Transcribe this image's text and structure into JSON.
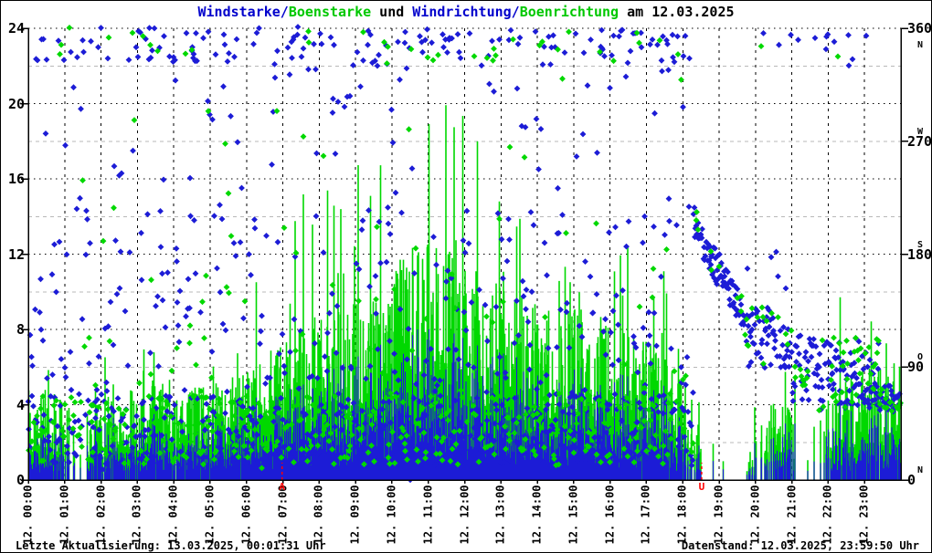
{
  "title": {
    "parts": [
      {
        "text": "Windstarke/",
        "color": "blue"
      },
      {
        "text": "Boenstarke",
        "color": "green"
      },
      {
        "text": " und ",
        "color": "black"
      },
      {
        "text": "Windrichtung/",
        "color": "blue"
      },
      {
        "text": "Boenrichtung",
        "color": "green"
      },
      {
        "text": " am 12.03.2025",
        "color": "black"
      }
    ],
    "full": "Windstarke/Boenstarke und Windrichtung/Boenrichtung am 12.03.2025"
  },
  "footer": {
    "left": "Letzte Aktualisierung: 13.03.2025, 00:01:31 Uhr",
    "right": "Datenstand: 12.03.2025, 23:59:50 Uhr"
  },
  "colors": {
    "background": "#ffffff",
    "text": "#000000",
    "title_blue": "#0000cc",
    "title_green": "#00c800",
    "wind_blue": "#1c1cd6",
    "gust_green": "#00d800",
    "red": "#ff0000",
    "grid_major": "#000000",
    "grid_minor": "#b8b8b8",
    "axis": "#000000"
  },
  "chart_data": {
    "type": "mixed-impulse-scatter",
    "title": "Windstarke/Boenstarke und Windrichtung/Boenrichtung am 12.03.2025",
    "date": "12.03.2025",
    "grid": "on",
    "seed": 987241,
    "samples_per_hour": 60,
    "series": [
      {
        "name": "Windstarke",
        "style": "impulse",
        "axis": "left",
        "color": "#1c1cd6"
      },
      {
        "name": "Boenstarke",
        "style": "impulse",
        "axis": "left",
        "color": "#00d800"
      },
      {
        "name": "Windrichtung",
        "style": "points",
        "axis": "right",
        "color": "#1c1cd6"
      },
      {
        "name": "Boenrichtung",
        "style": "points",
        "axis": "right",
        "color": "#00d800"
      }
    ],
    "y_left": {
      "range": [
        0,
        24
      ],
      "tick_values": [
        0,
        4,
        8,
        12,
        16,
        20,
        24
      ],
      "tick_labels": [
        "0",
        "4",
        "8",
        "12",
        "16",
        "20",
        "24"
      ],
      "minor_values": [
        2,
        6,
        10,
        14,
        18,
        22
      ]
    },
    "y_right": {
      "range": [
        0,
        360
      ],
      "tick_values": [
        0,
        90,
        180,
        270,
        360
      ],
      "tick_labels": [
        "0",
        "90",
        "180",
        "270",
        "360"
      ],
      "compass": [
        {
          "label": "N",
          "deg": 0
        },
        {
          "label": "O",
          "deg": 90
        },
        {
          "label": "S",
          "deg": 180
        },
        {
          "label": "W",
          "deg": 270
        },
        {
          "label": "N",
          "deg": 360
        }
      ]
    },
    "x_axis": {
      "range_hours": [
        0,
        24
      ],
      "grid_every_hours": 1,
      "tick_labels": [
        "12. 00:00",
        "12. 01:00",
        "12. 02:00",
        "12. 03:00",
        "12. 04:00",
        "12. 05:00",
        "12. 06:00",
        "12. 07:00",
        "12. 08:00",
        "12. 09:00",
        "12. 10:00",
        "12. 11:00",
        "12. 12:00",
        "12. 13:00",
        "12. 14:00",
        "12. 15:00",
        "12. 16:00",
        "12. 17:00",
        "12. 18:00",
        "12. 19:00",
        "12. 20:00",
        "12. 21:00",
        "12. 22:00",
        "12. 23:00"
      ]
    },
    "sun_markers": [
      {
        "label": "A",
        "hour": 6.98
      },
      {
        "label": "U",
        "hour": 18.52
      }
    ],
    "hourly_envelope": {
      "hours": [
        0,
        1,
        2,
        3,
        4,
        5,
        6,
        7,
        8,
        9,
        10,
        11,
        12,
        13,
        14,
        15,
        16,
        17,
        18,
        19,
        20,
        21,
        22,
        23
      ],
      "wind_typ": [
        1.3,
        0.9,
        1.4,
        1.5,
        1.4,
        1.8,
        2.2,
        2.6,
        2.8,
        3.2,
        3.8,
        3.8,
        3.4,
        3.0,
        2.8,
        2.8,
        2.4,
        2.0,
        1.0,
        0.3,
        1.0,
        0.9,
        1.4,
        1.5
      ],
      "wind_max": [
        3.0,
        2.5,
        3.5,
        3.5,
        3.5,
        4.0,
        4.5,
        5.0,
        6.0,
        7.0,
        8.0,
        8.0,
        7.0,
        6.5,
        6.0,
        6.0,
        5.5,
        5.0,
        3.0,
        1.0,
        3.0,
        3.0,
        4.5,
        4.0
      ],
      "gust_typ": [
        3.5,
        2.5,
        3.5,
        4.0,
        3.5,
        4.0,
        5.0,
        6.0,
        6.5,
        7.0,
        9.0,
        9.0,
        8.0,
        7.0,
        6.5,
        6.5,
        5.5,
        5.0,
        3.0,
        0.5,
        3.0,
        2.5,
        4.0,
        4.5
      ],
      "gust_max": [
        7.5,
        5.0,
        7.5,
        8.0,
        7.0,
        8.0,
        11.5,
        16.0,
        16.0,
        18.0,
        23.5,
        21.0,
        18.0,
        15.5,
        13.0,
        14.0,
        12.5,
        12.0,
        7.5,
        1.5,
        7.0,
        5.5,
        12.8,
        8.0
      ],
      "activity": [
        0.9,
        0.6,
        0.85,
        0.9,
        0.9,
        0.95,
        1,
        1,
        1,
        1,
        1,
        1,
        1,
        1,
        1,
        1,
        1,
        0.95,
        0.5,
        0.08,
        0.8,
        0.55,
        0.9,
        0.95
      ]
    },
    "quiet_ranges_hours": [
      [
        1.12,
        1.6
      ],
      [
        18.55,
        19.75
      ],
      [
        21.1,
        21.85
      ]
    ],
    "direction_segments": [
      {
        "from": 0,
        "to": 18.3,
        "blue_p": 0.85,
        "green_p": 0.4,
        "bands": [
          {
            "min": 12,
            "max": 68,
            "w": 0.45
          },
          {
            "min": 68,
            "max": 145,
            "w": 0.18
          },
          {
            "min": 145,
            "max": 215,
            "w": 0.1
          },
          {
            "min": 330,
            "max": 361,
            "w": 0.14
          },
          {
            "min": 215,
            "max": 330,
            "w": 0.05
          },
          {
            "min": 0,
            "max": 361,
            "w": 0.08
          }
        ]
      },
      {
        "from": 18.3,
        "to": 19.7,
        "blue_p": 0.95,
        "green_p": 0.12,
        "trail": {
          "start_deg": 205,
          "end_deg": 128,
          "jitter_deg": 14
        }
      },
      {
        "from": 19.7,
        "to": 21.0,
        "blue_p": 0.8,
        "green_p": 0.25,
        "bands": [
          {
            "min": 88,
            "max": 140,
            "w": 0.8
          },
          {
            "min": 330,
            "max": 360,
            "w": 0.1
          },
          {
            "min": 140,
            "max": 200,
            "w": 0.1
          }
        ]
      },
      {
        "from": 21.0,
        "to": 23.4,
        "blue_p": 0.9,
        "green_p": 0.3,
        "bands": [
          {
            "min": 55,
            "max": 115,
            "w": 0.92
          },
          {
            "min": 330,
            "max": 360,
            "w": 0.08
          }
        ]
      },
      {
        "from": 23.4,
        "to": 24.01,
        "blue_p": 0.95,
        "green_p": 0.3,
        "bands": [
          {
            "min": 55,
            "max": 75,
            "w": 1
          }
        ]
      }
    ]
  }
}
